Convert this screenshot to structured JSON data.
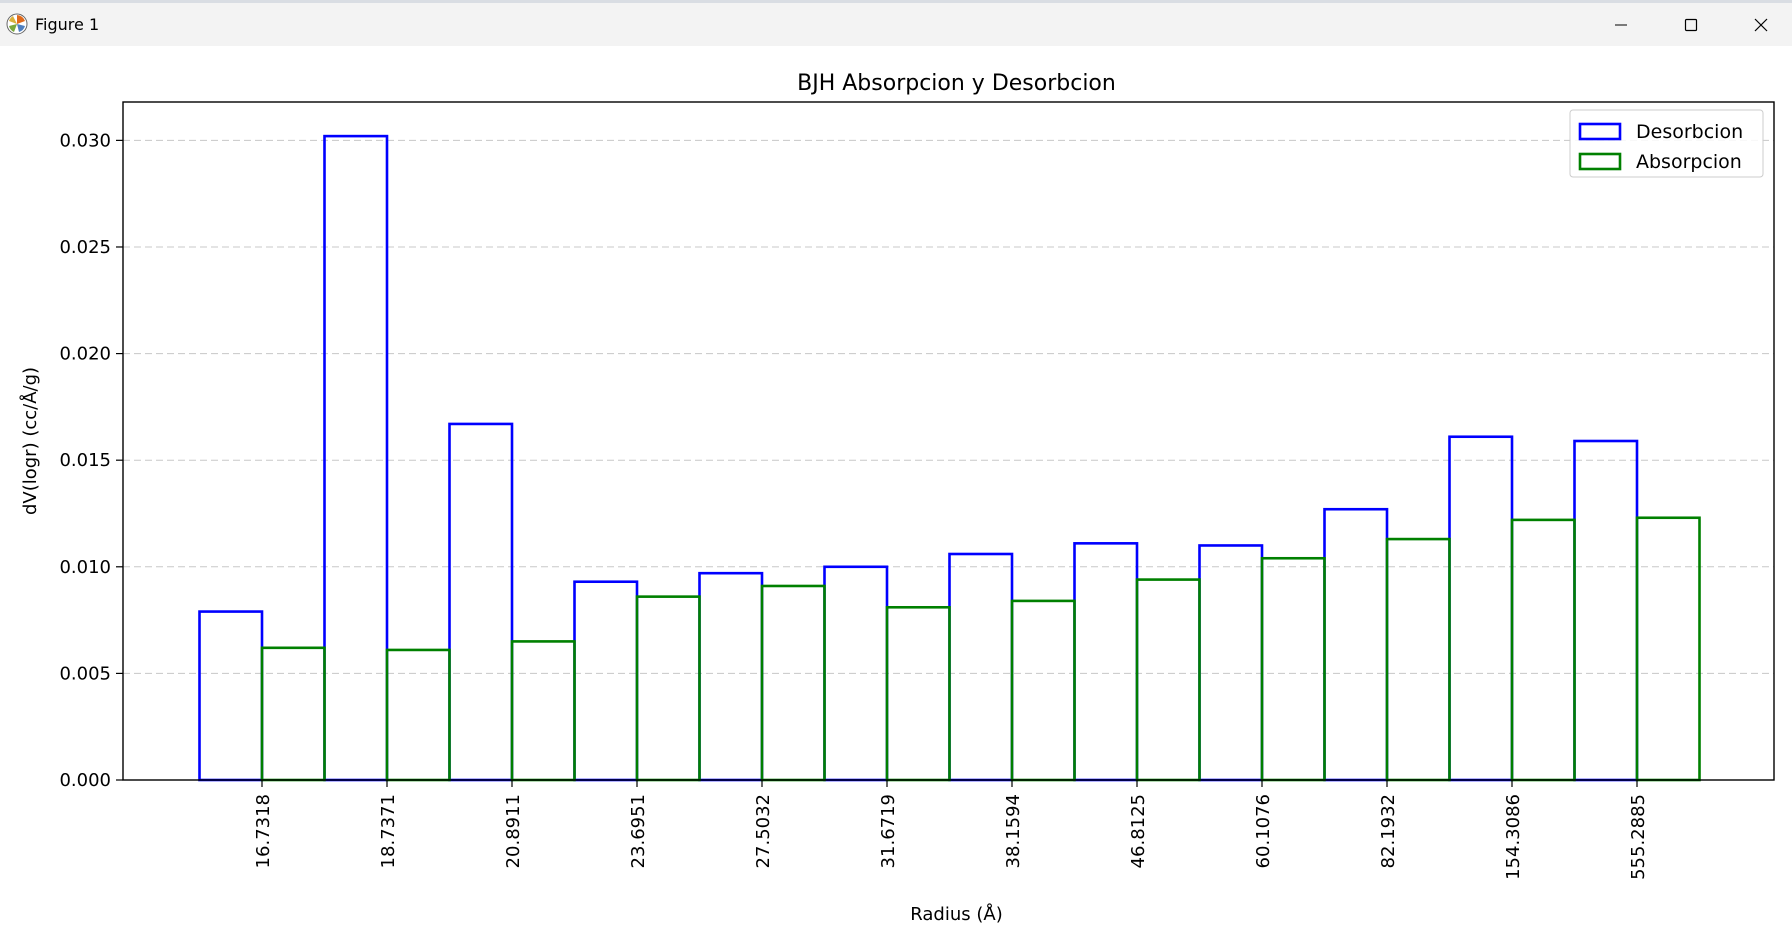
{
  "window": {
    "title": "Figure 1",
    "icon": "matplotlib-icon",
    "controls": [
      "minimize-icon",
      "maximize-icon",
      "close-icon"
    ]
  },
  "chart_data": {
    "type": "bar",
    "title": "BJH Absorpcion y Desorbcion",
    "xlabel": "Radius (Å)",
    "ylabel": "dV(logr) (cc/Å/g)",
    "categories": [
      "16.7318",
      "18.7371",
      "20.8911",
      "23.6951",
      "27.5032",
      "31.6719",
      "38.1594",
      "46.8125",
      "60.1076",
      "82.1932",
      "154.3086",
      "555.2885"
    ],
    "y_ticks": [
      "0.000",
      "0.005",
      "0.010",
      "0.015",
      "0.020",
      "0.025",
      "0.030"
    ],
    "ylim": [
      0,
      0.0318
    ],
    "grid": "horizontal dashed",
    "legend_position": "top-right",
    "bar_style": "outline, Desorbcion bars offset half a step left of each tick, Absorpcion bars offset half a step right",
    "series": [
      {
        "name": "Desorbcion",
        "color": "#0000ff",
        "values": [
          0.0079,
          0.0302,
          0.0167,
          0.0093,
          0.0097,
          0.01,
          0.0106,
          0.0111,
          0.011,
          0.0127,
          0.0161,
          0.0159
        ]
      },
      {
        "name": "Absorpcion",
        "color": "#008000",
        "values": [
          0.0062,
          0.0061,
          0.0065,
          0.0086,
          0.0091,
          0.0081,
          0.0084,
          0.0094,
          0.0104,
          0.0113,
          0.0122,
          0.0123
        ]
      }
    ]
  }
}
